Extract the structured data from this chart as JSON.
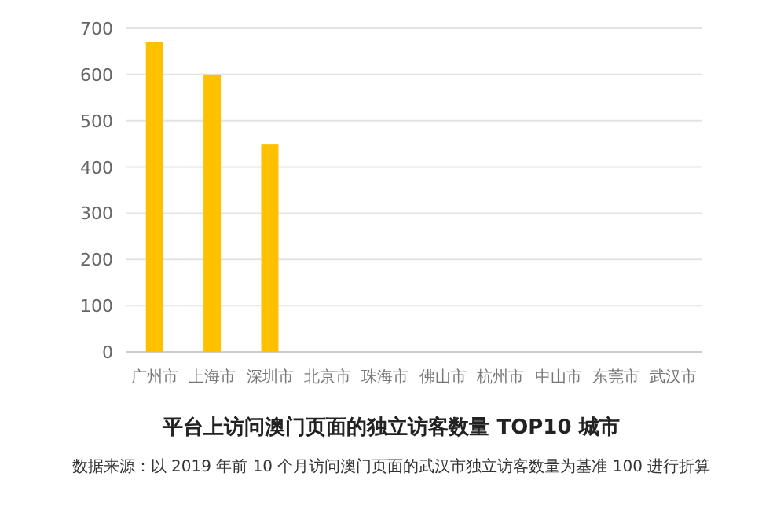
{
  "chart_data": {
    "type": "bar",
    "title": "平台上访问澳门页面的独立访客数量 TOP10 城市",
    "annotations": [
      "数据来源：以 2019 年前 10 个月访问澳门页面的武汉市独立访客数量为基准 100 进行折算"
    ],
    "categories": [
      "广州市",
      "上海市",
      "深圳市",
      "北京市",
      "珠海市",
      "佛山市",
      "杭州市",
      "中山市",
      "东莞市",
      "武汉市"
    ],
    "values": [
      670,
      600,
      450,
      null,
      null,
      null,
      null,
      null,
      null,
      null
    ],
    "color": "#ffc000",
    "ylim": [
      0,
      700
    ],
    "yticks": [
      0,
      100,
      200,
      300,
      400,
      500,
      600,
      700
    ],
    "grid": "y"
  }
}
